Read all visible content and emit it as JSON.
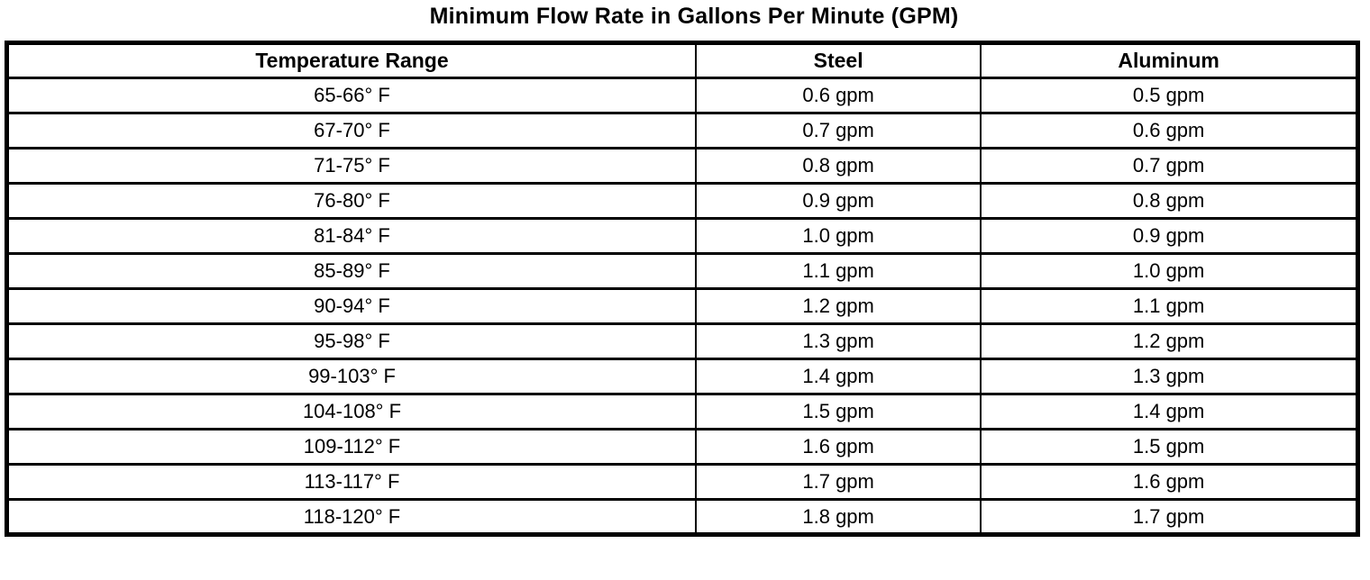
{
  "title": "Minimum Flow Rate in Gallons Per Minute (GPM)",
  "table": {
    "columns": [
      "Temperature Range",
      "Steel",
      "Aluminum"
    ],
    "rows": [
      [
        "65-66° F",
        "0.6 gpm",
        "0.5 gpm"
      ],
      [
        "67-70° F",
        "0.7 gpm",
        "0.6 gpm"
      ],
      [
        "71-75° F",
        "0.8 gpm",
        "0.7 gpm"
      ],
      [
        "76-80° F",
        "0.9 gpm",
        "0.8 gpm"
      ],
      [
        "81-84° F",
        "1.0 gpm",
        "0.9 gpm"
      ],
      [
        "85-89° F",
        "1.1 gpm",
        "1.0 gpm"
      ],
      [
        "90-94° F",
        "1.2 gpm",
        "1.1 gpm"
      ],
      [
        "95-98° F",
        "1.3 gpm",
        "1.2 gpm"
      ],
      [
        "99-103° F",
        "1.4 gpm",
        "1.3 gpm"
      ],
      [
        "104-108° F",
        "1.5 gpm",
        "1.4 gpm"
      ],
      [
        "109-112° F",
        "1.6 gpm",
        "1.5 gpm"
      ],
      [
        "113-117° F",
        "1.7 gpm",
        "1.6 gpm"
      ],
      [
        "118-120° F",
        "1.8 gpm",
        "1.7 gpm"
      ]
    ]
  },
  "chart_data": {
    "type": "table",
    "title": "Minimum Flow Rate in Gallons Per Minute (GPM)",
    "columns": [
      "Temperature Range",
      "Steel",
      "Aluminum"
    ],
    "temperature_ranges_f": [
      "65-66",
      "67-70",
      "71-75",
      "76-80",
      "81-84",
      "85-89",
      "90-94",
      "95-98",
      "99-103",
      "104-108",
      "109-112",
      "113-117",
      "118-120"
    ],
    "steel_gpm": [
      0.6,
      0.7,
      0.8,
      0.9,
      1.0,
      1.1,
      1.2,
      1.3,
      1.4,
      1.5,
      1.6,
      1.7,
      1.8
    ],
    "aluminum_gpm": [
      0.5,
      0.6,
      0.7,
      0.8,
      0.9,
      1.0,
      1.1,
      1.2,
      1.3,
      1.4,
      1.5,
      1.6,
      1.7
    ]
  }
}
